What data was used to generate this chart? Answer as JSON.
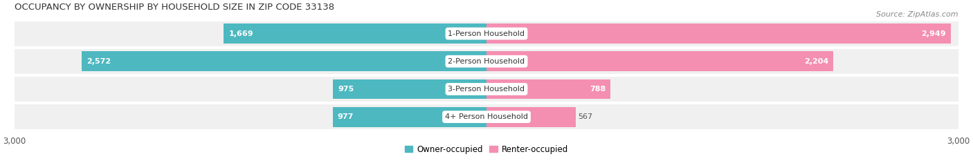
{
  "title": "OCCUPANCY BY OWNERSHIP BY HOUSEHOLD SIZE IN ZIP CODE 33138",
  "source": "Source: ZipAtlas.com",
  "categories": [
    "1-Person Household",
    "2-Person Household",
    "3-Person Household",
    "4+ Person Household"
  ],
  "owner_values": [
    1669,
    2572,
    975,
    977
  ],
  "renter_values": [
    2949,
    2204,
    788,
    567
  ],
  "owner_color": "#4db8c0",
  "renter_color": "#f48fb1",
  "bg_color": "#ffffff",
  "row_bg_color": "#f0f0f0",
  "row_sep_color": "#ffffff",
  "xlim": 3000,
  "bar_height": 0.72,
  "title_fontsize": 9.5,
  "source_fontsize": 8,
  "value_fontsize": 8,
  "cat_fontsize": 8,
  "tick_fontsize": 8.5,
  "legend_fontsize": 8.5
}
